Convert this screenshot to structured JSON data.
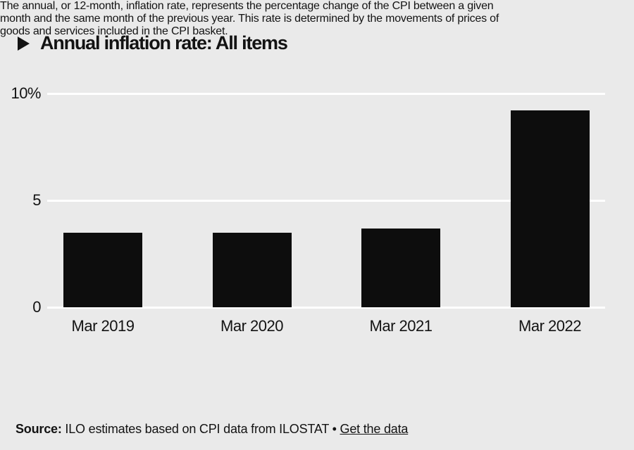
{
  "title": "Annual inflation rate: All items",
  "description_lines": [
    "The annual, or 12-month, inflation rate, represents the percentage change of the CPI between a given",
    "month and the same month of the previous year. This rate is determined by the movements of prices of",
    "goods and services included in the CPI basket."
  ],
  "source": {
    "label": "Source:",
    "text": " ILO estimates based on CPI data from ILOSTAT ",
    "separator": "•",
    "link_label": "Get the data"
  },
  "colors": {
    "background": "#eaeaea",
    "bar": "#0d0d0d",
    "gridline": "#ffffff",
    "text": "#131313"
  },
  "chart_data": {
    "type": "bar",
    "title": "Annual inflation rate: All items",
    "categories": [
      "Mar 2019",
      "Mar 2020",
      "Mar 2021",
      "Mar 2022"
    ],
    "values": [
      3.5,
      3.5,
      3.7,
      9.2
    ],
    "unit": "%",
    "xlabel": "",
    "ylabel": "",
    "ylim": [
      0,
      10
    ],
    "yticks": [
      {
        "value": 0,
        "label": "0"
      },
      {
        "value": 5,
        "label": "5"
      },
      {
        "value": 10,
        "label": "10%"
      }
    ],
    "grid": "horizontal",
    "legend": "none",
    "bar_color": "#0d0d0d"
  }
}
